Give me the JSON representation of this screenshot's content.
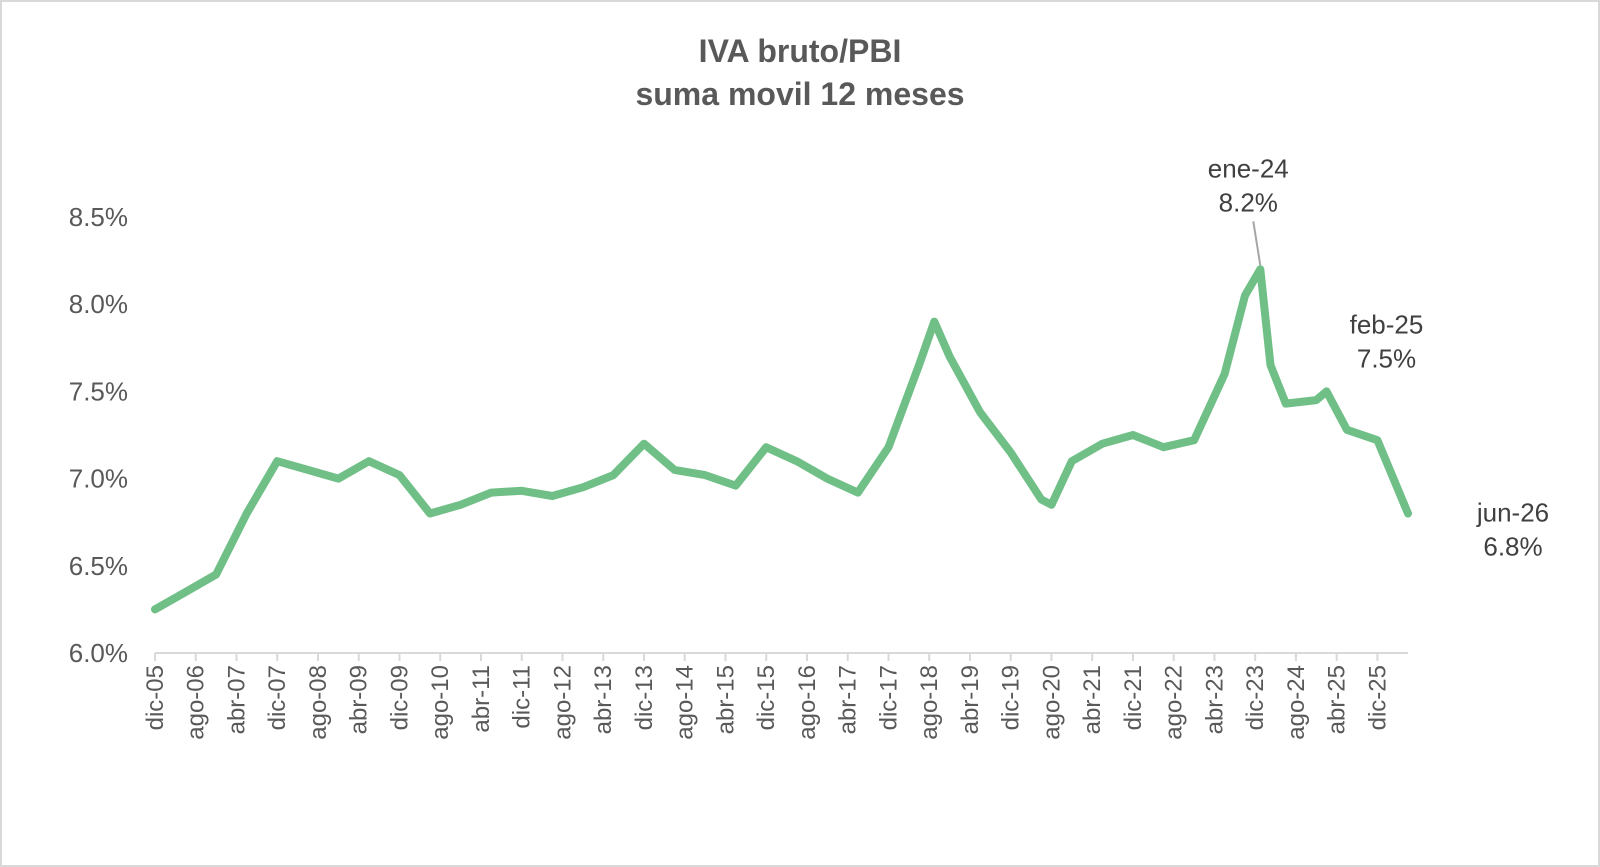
{
  "chart_data": {
    "type": "line",
    "title_line1": "IVA bruto/PBI",
    "title_line2": "suma movil 12 meses",
    "xlabel": "",
    "ylabel": "",
    "ylim": [
      6.0,
      8.5
    ],
    "y_ticks": [
      "6.0%",
      "6.5%",
      "7.0%",
      "7.5%",
      "8.0%",
      "8.5%"
    ],
    "y_tick_values": [
      6.0,
      6.5,
      7.0,
      7.5,
      8.0,
      8.5
    ],
    "x_tick_labels": [
      "dic-05",
      "ago-06",
      "abr-07",
      "dic-07",
      "ago-08",
      "abr-09",
      "dic-09",
      "ago-10",
      "abr-11",
      "dic-11",
      "ago-12",
      "abr-13",
      "dic-13",
      "ago-14",
      "abr-15",
      "dic-15",
      "ago-16",
      "abr-17",
      "dic-17",
      "ago-18",
      "abr-19",
      "dic-19",
      "ago-20",
      "abr-21",
      "dic-21",
      "ago-22",
      "abr-23",
      "dic-23",
      "ago-24",
      "abr-25",
      "dic-25"
    ],
    "line_color": "#6fbf86",
    "grid": false,
    "series": [
      {
        "x": [
          "dic-05",
          "jun-06",
          "dic-06",
          "jun-07",
          "dic-07",
          "jun-08",
          "dic-08",
          "jun-09",
          "dic-09",
          "jun-10",
          "dic-10",
          "jun-11",
          "dic-11",
          "jun-12",
          "dic-12",
          "jun-13",
          "dic-13",
          "jun-14",
          "dic-14",
          "jun-15",
          "dic-15",
          "jun-16",
          "dic-16",
          "jun-17",
          "dic-17",
          "jun-18",
          "sep-18",
          "dic-18",
          "jun-19",
          "dic-19",
          "jun-20",
          "ago-20",
          "dic-20",
          "jun-21",
          "dic-21",
          "jun-22",
          "dic-22",
          "jun-23",
          "oct-23",
          "ene-24",
          "mar-24",
          "jun-24",
          "dic-24",
          "feb-25",
          "jun-25",
          "dic-25",
          "jun-26"
        ],
        "values": [
          6.25,
          6.35,
          6.45,
          6.8,
          7.1,
          7.05,
          7.0,
          7.1,
          7.02,
          6.8,
          6.85,
          6.92,
          6.93,
          6.9,
          6.95,
          7.02,
          7.2,
          7.05,
          7.02,
          6.96,
          7.18,
          7.1,
          7.0,
          6.92,
          7.18,
          7.65,
          7.9,
          7.7,
          7.38,
          7.15,
          6.88,
          6.85,
          7.1,
          7.2,
          7.25,
          7.18,
          7.22,
          7.6,
          8.05,
          8.2,
          7.65,
          7.43,
          7.45,
          7.5,
          7.28,
          7.22,
          6.8
        ]
      }
    ],
    "annotations": [
      {
        "id": "peak",
        "label": "ene-24",
        "value_label": "8.2%",
        "x": "ene-24",
        "y": 8.2
      },
      {
        "id": "feb25",
        "label": "feb-25",
        "value_label": "7.5%",
        "x": "feb-25",
        "y": 7.5
      },
      {
        "id": "last",
        "label": "jun-26",
        "value_label": "6.8%",
        "x": "jun-26",
        "y": 6.8
      }
    ]
  }
}
